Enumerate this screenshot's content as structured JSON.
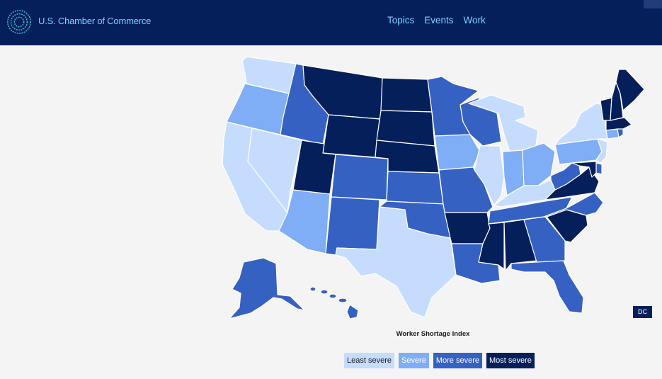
{
  "header": {
    "brand": "U.S. Chamber of Commerce",
    "nav": [
      "Topics",
      "Events",
      "Work"
    ]
  },
  "map": {
    "title": "Worker Shortage Index",
    "dc_label": "DC",
    "legend": [
      {
        "label": "Least severe",
        "color": "#c5dcff",
        "text_color": "#1b1b1b"
      },
      {
        "label": "Severe",
        "color": "#7fadf6",
        "text_color": "#ffffff"
      },
      {
        "label": "More severe",
        "color": "#3561c3",
        "text_color": "#ffffff"
      },
      {
        "label": "Most severe",
        "color": "#051f5b",
        "text_color": "#ffffff"
      }
    ],
    "states": {
      "WA": "least",
      "OR": "severe",
      "CA": "least",
      "NV": "least",
      "ID": "more",
      "MT": "most",
      "WY": "most",
      "UT": "most",
      "AZ": "severe",
      "CO": "more",
      "NM": "more",
      "ND": "most",
      "SD": "most",
      "NE": "most",
      "KS": "more",
      "OK": "more",
      "TX": "least",
      "MN": "more",
      "IA": "severe",
      "MO": "more",
      "AR": "most",
      "LA": "more",
      "WI": "more",
      "IL": "least",
      "MI": "least",
      "IN": "severe",
      "OH": "severe",
      "KY": "least",
      "TN": "more",
      "MS": "most",
      "AL": "most",
      "GA": "more",
      "FL": "more",
      "SC": "most",
      "NC": "more",
      "VA": "most",
      "WV": "more",
      "PA": "severe",
      "NY": "least",
      "ME": "most",
      "VT": "most",
      "NH": "most",
      "MA": "most",
      "CT": "severe",
      "RI": "more",
      "NJ": "least",
      "DE": "more",
      "MD": "most",
      "AK": "more",
      "HI": "more"
    }
  }
}
